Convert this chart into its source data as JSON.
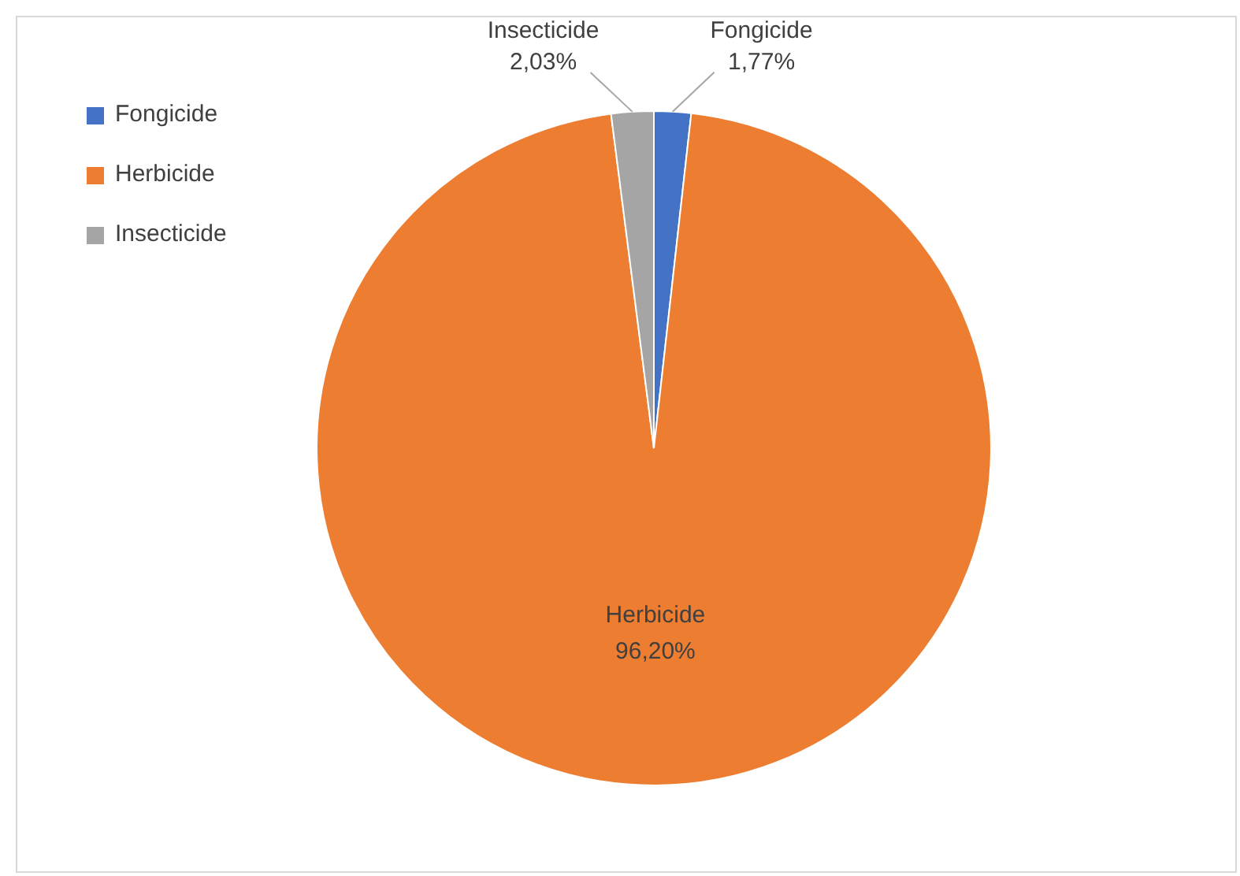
{
  "chart_data": {
    "type": "pie",
    "categories": [
      "Fongicide",
      "Herbicide",
      "Insecticide"
    ],
    "values": [
      1.77,
      96.2,
      2.03
    ],
    "colors": [
      "#4472c4",
      "#ed7d31",
      "#a5a5a5"
    ],
    "value_labels": [
      "1,77%",
      "96,20%",
      "2,03%"
    ],
    "legend": "top left"
  }
}
